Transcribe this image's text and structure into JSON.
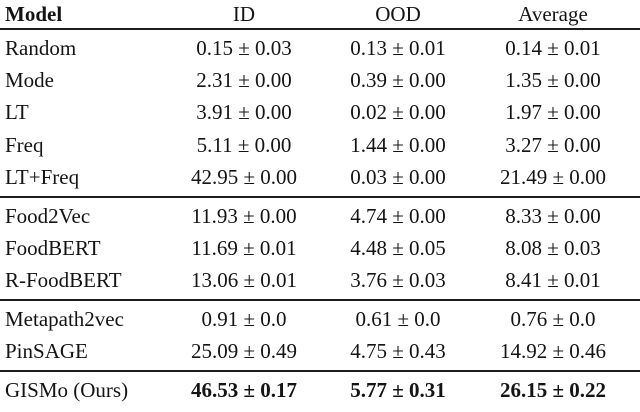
{
  "table": {
    "title_hint": "Model comparison results table",
    "columns": {
      "model": "Model",
      "id": "ID",
      "ood": "OOD",
      "avg": "Average"
    },
    "rows": [
      {
        "model": "Random",
        "id": "0.15 ± 0.03",
        "ood": "0.13 ± 0.01",
        "avg": "0.14 ± 0.01",
        "group": "baselines"
      },
      {
        "model": "Mode",
        "id": "2.31 ± 0.00",
        "ood": "0.39 ± 0.00",
        "avg": "1.35 ± 0.00",
        "group": "baselines"
      },
      {
        "model": "LT",
        "id": "3.91 ± 0.00",
        "ood": "0.02 ± 0.00",
        "avg": "1.97 ± 0.00",
        "group": "baselines"
      },
      {
        "model": "Freq",
        "id": "5.11 ± 0.00",
        "ood": "1.44 ± 0.00",
        "avg": "3.27 ± 0.00",
        "group": "baselines"
      },
      {
        "model": "LT+Freq",
        "id": "42.95 ± 0.00",
        "ood": "0.03 ± 0.00",
        "avg": "21.49 ± 0.00",
        "group": "baselines"
      },
      {
        "model": "Food2Vec",
        "id": "11.93 ± 0.00",
        "ood": "4.74 ± 0.00",
        "avg": "8.33 ± 0.00",
        "group": "embeddings"
      },
      {
        "model": "FoodBERT",
        "id": "11.69 ± 0.01",
        "ood": "4.48 ± 0.05",
        "avg": "8.08 ± 0.03",
        "group": "embeddings"
      },
      {
        "model": "R-FoodBERT",
        "id": "13.06 ± 0.01",
        "ood": "3.76 ± 0.03",
        "avg": "8.41 ± 0.01",
        "group": "embeddings"
      },
      {
        "model": "Metapath2vec",
        "id": "0.91 ± 0.0",
        "ood": "0.61 ± 0.0",
        "avg": "0.76 ± 0.0",
        "group": "graph"
      },
      {
        "model": "PinSAGE",
        "id": "25.09 ± 0.49",
        "ood": "4.75 ± 0.43",
        "avg": "14.92 ± 0.46",
        "group": "graph"
      },
      {
        "model": "GISMo (Ours)",
        "id": "46.53 ± 0.17",
        "ood": "5.77 ± 0.31",
        "avg": "26.15 ± 0.22",
        "group": "ours",
        "values_bold": true
      }
    ],
    "colors": {
      "text": "#141414",
      "rule": "#1c1c1c",
      "background": "#ffffff"
    }
  }
}
